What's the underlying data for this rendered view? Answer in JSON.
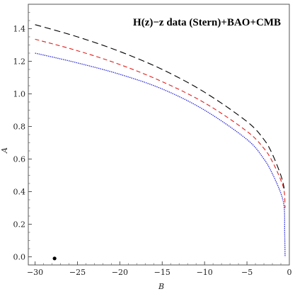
{
  "chart_data": {
    "type": "line",
    "title": "H(z)−z data (Stern)+BAO+CMB",
    "xlabel": "B",
    "ylabel": "A",
    "xlim": [
      -30.8,
      0.0
    ],
    "ylim": [
      -0.05,
      1.55
    ],
    "xticks": [
      -30,
      -25,
      -20,
      -15,
      -10,
      -5,
      0
    ],
    "yticks": [
      0.0,
      0.2,
      0.4,
      0.6,
      0.8,
      1.0,
      1.2,
      1.4
    ],
    "grid": false,
    "series": [
      {
        "style": "dashed",
        "color": "#000000",
        "points": [
          [
            -30,
            1.425
          ],
          [
            -25,
            1.35
          ],
          [
            -20,
            1.26
          ],
          [
            -15,
            1.15
          ],
          [
            -10,
            1.01
          ],
          [
            -5,
            0.83
          ],
          [
            -3,
            0.72
          ],
          [
            -2,
            0.63
          ],
          [
            -1,
            0.5
          ],
          [
            -0.6,
            0.42
          ]
        ]
      },
      {
        "style": "dashed",
        "color": "#e0201c",
        "points": [
          [
            -30,
            1.335
          ],
          [
            -25,
            1.265
          ],
          [
            -20,
            1.18
          ],
          [
            -15,
            1.075
          ],
          [
            -10,
            0.945
          ],
          [
            -5,
            0.77
          ],
          [
            -3,
            0.665
          ],
          [
            -2,
            0.585
          ],
          [
            -1,
            0.47
          ],
          [
            -0.6,
            0.4
          ],
          [
            -0.5,
            0.3
          ]
        ]
      },
      {
        "style": "dotted",
        "color": "#2a2ad8",
        "points": [
          [
            -30,
            1.25
          ],
          [
            -25,
            1.19
          ],
          [
            -20,
            1.12
          ],
          [
            -15,
            1.03
          ],
          [
            -10,
            0.9
          ],
          [
            -5,
            0.72
          ],
          [
            -3,
            0.6
          ],
          [
            -2,
            0.51
          ],
          [
            -1,
            0.39
          ],
          [
            -0.6,
            0.3
          ],
          [
            -0.55,
            0.15
          ],
          [
            -0.5,
            0.0
          ]
        ]
      }
    ],
    "marker": {
      "x": -27.7,
      "y": -0.01,
      "color": "#000000"
    }
  }
}
